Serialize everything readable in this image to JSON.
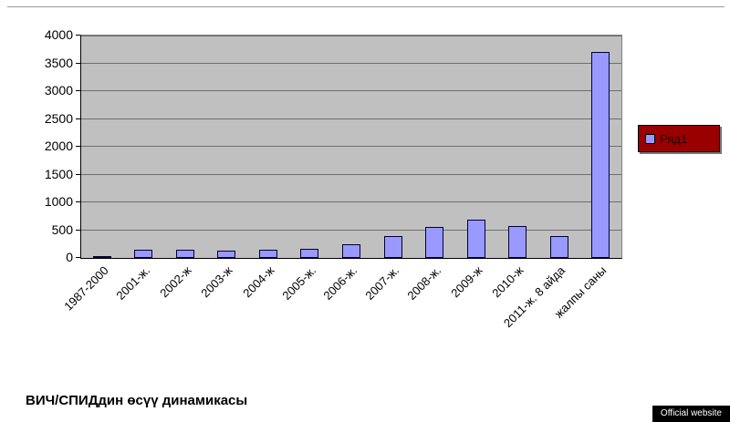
{
  "chart_data": {
    "type": "bar",
    "categories": [
      "1987-2000",
      "2001-ж.",
      "2002-ж",
      "2003-ж",
      "2004-ж",
      "2005-ж.",
      "2006-ж.",
      "2007-ж.",
      "2008-ж.",
      "2009-ж",
      "2010-ж",
      "2011-ж. 8 айда",
      "жалпы саны"
    ],
    "values": [
      20,
      150,
      150,
      130,
      150,
      160,
      250,
      400,
      550,
      690,
      570,
      400,
      3700
    ],
    "title": "",
    "xlabel": "",
    "ylabel": "",
    "ylim": [
      0,
      4000
    ],
    "yticks": [
      0,
      500,
      1000,
      1500,
      2000,
      2500,
      3000,
      3500,
      4000
    ],
    "grid": true,
    "legend": {
      "position": "right",
      "entries": [
        "Ряд1"
      ]
    },
    "colors": {
      "bar_fill": "#9999ff",
      "bar_border": "#000033",
      "plot_bg": "#c0c0c0",
      "gridline": "#6f6f6f",
      "legend_bg": "#990000"
    }
  },
  "caption": "ВИЧ/СПИДдин өсүү динамикасы",
  "badge": "Official website"
}
